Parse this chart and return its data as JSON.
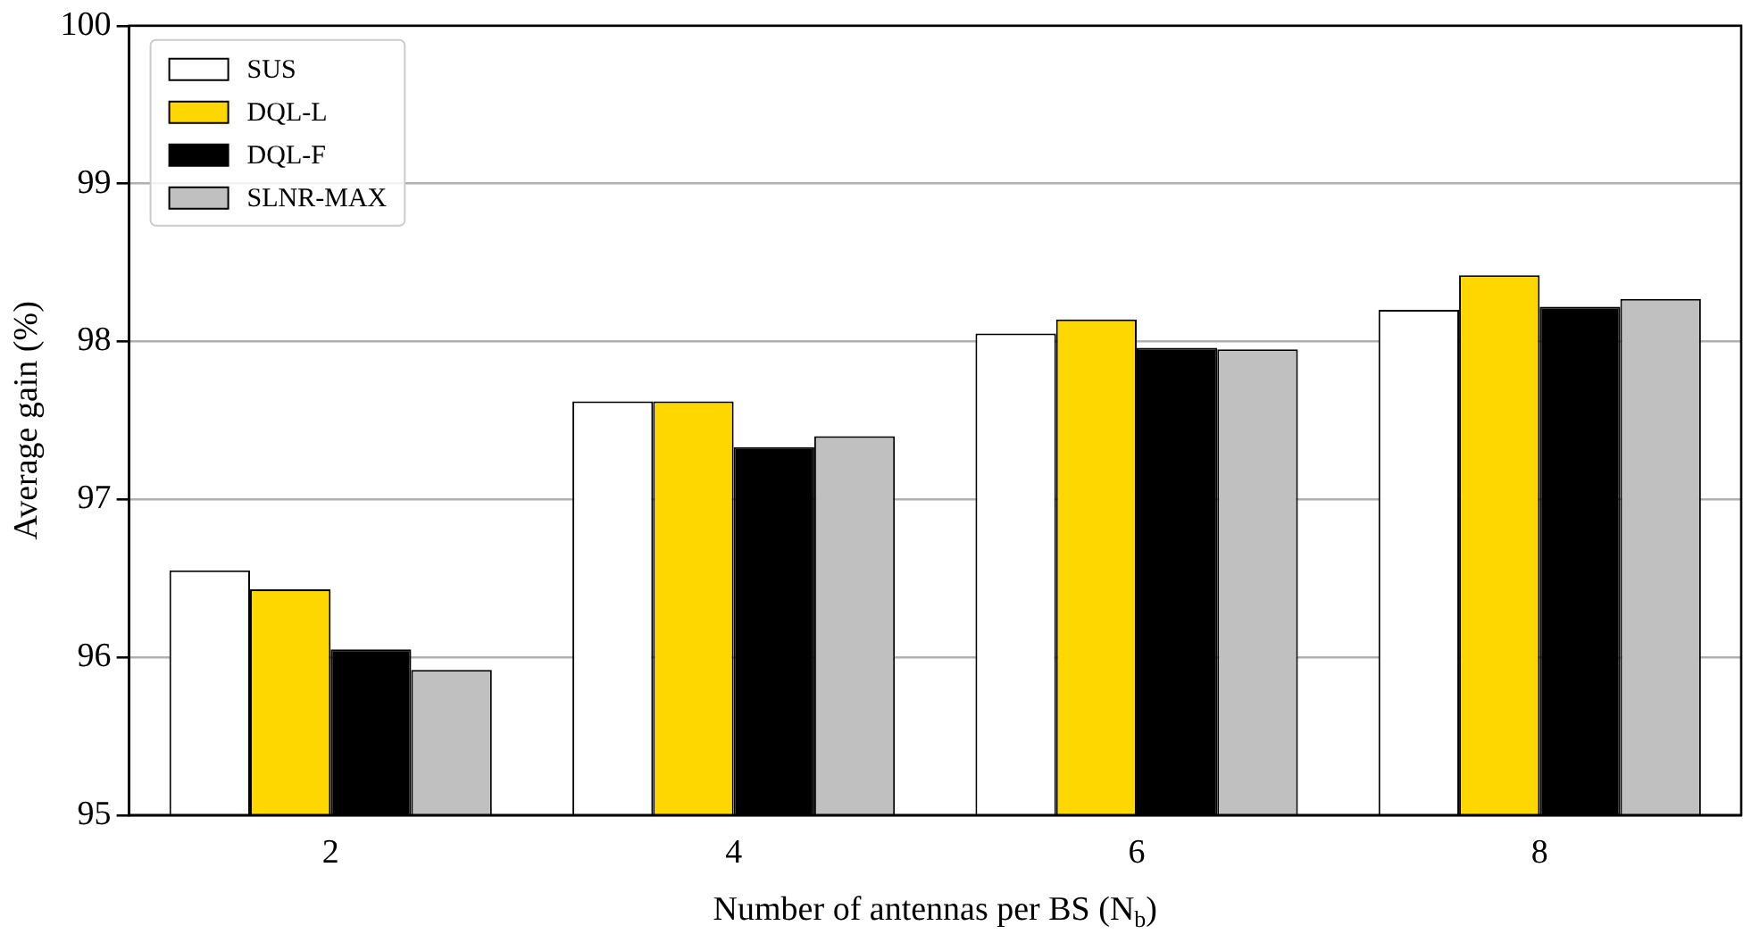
{
  "chart_data": {
    "type": "bar",
    "xlabel": "Number of antennas per BS (N$_{b}$)",
    "ylabel": "Average gain (%)",
    "categories": [
      "2",
      "4",
      "6",
      "8"
    ],
    "series": [
      {
        "name": "SUS",
        "color": "#ffffff",
        "values": [
          96.55,
          97.62,
          98.05,
          98.2
        ]
      },
      {
        "name": "DQL-L",
        "color": "#ffd700",
        "values": [
          96.43,
          97.62,
          98.14,
          98.42
        ]
      },
      {
        "name": "DQL-F",
        "color": "#000000",
        "values": [
          96.05,
          97.33,
          97.96,
          98.22
        ]
      },
      {
        "name": "SLNR-MAX",
        "color": "#c0c0c0",
        "values": [
          95.92,
          97.4,
          97.95,
          98.27
        ]
      }
    ],
    "ylim": [
      95,
      100
    ],
    "yticks": [
      95,
      96,
      97,
      98,
      99,
      100
    ],
    "grid": "y",
    "legend": "top left"
  }
}
